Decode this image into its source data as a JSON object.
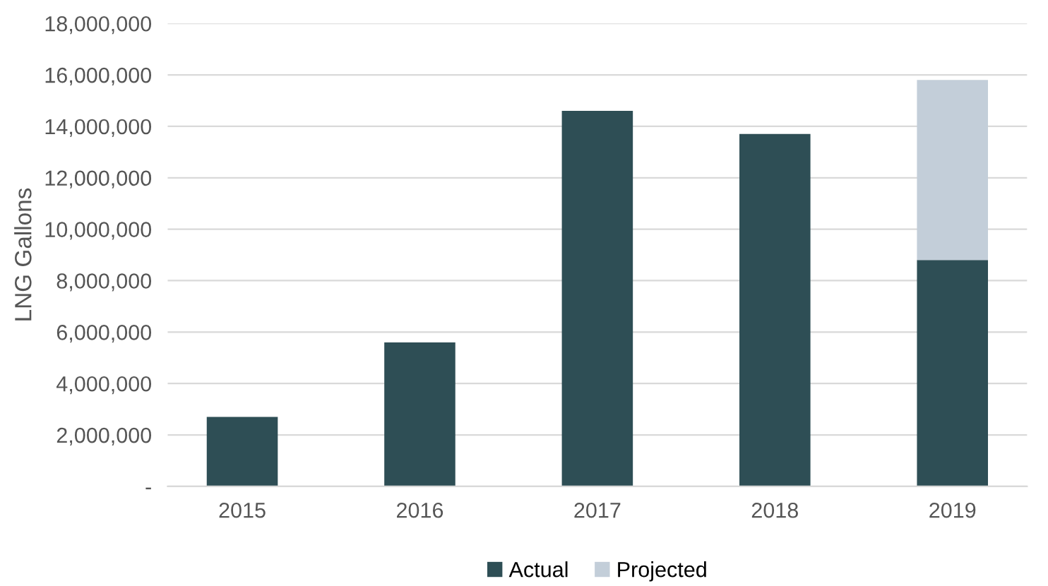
{
  "chart_data": {
    "type": "bar",
    "ylabel": "LNG Gallons",
    "categories": [
      "2015",
      "2016",
      "2017",
      "2018",
      "2019"
    ],
    "stacked": true,
    "series": [
      {
        "name": "Actual",
        "color": "#2e4e55",
        "values": [
          2700000,
          5600000,
          14600000,
          13700000,
          8800000
        ]
      },
      {
        "name": "Projected",
        "color": "#c3ced9",
        "values": [
          null,
          null,
          null,
          null,
          7000000
        ]
      }
    ],
    "ylim": [
      0,
      18000000
    ],
    "yticks": [
      {
        "value": 0,
        "label": "-"
      },
      {
        "value": 2000000,
        "label": "2,000,000"
      },
      {
        "value": 4000000,
        "label": "4,000,000"
      },
      {
        "value": 6000000,
        "label": "6,000,000"
      },
      {
        "value": 8000000,
        "label": "8,000,000"
      },
      {
        "value": 10000000,
        "label": "10,000,000"
      },
      {
        "value": 12000000,
        "label": "12,000,000"
      },
      {
        "value": 14000000,
        "label": "14,000,000"
      },
      {
        "value": 16000000,
        "label": "16,000,000"
      },
      {
        "value": 18000000,
        "label": "18,000,000"
      }
    ],
    "grid": "y",
    "legend": "bottom"
  }
}
